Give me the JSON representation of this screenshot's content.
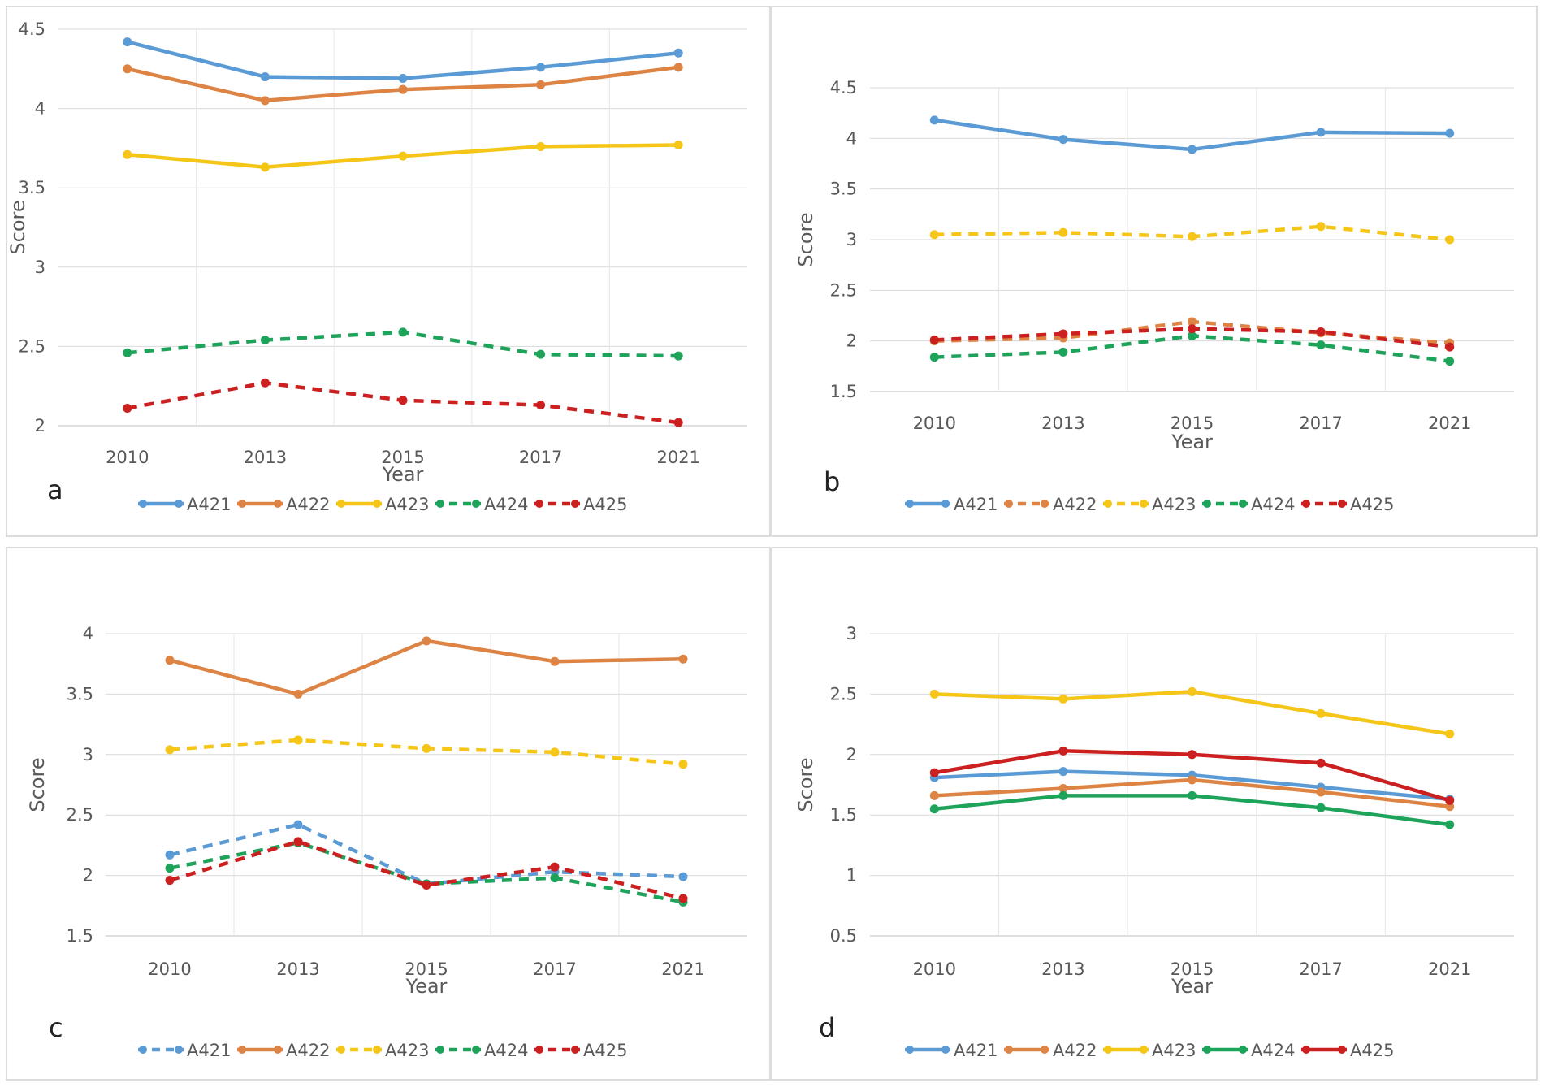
{
  "chart_data": [
    {
      "type": "line",
      "panel_label": "a",
      "categories": [
        "2010",
        "2013",
        "2015",
        "2017",
        "2021"
      ],
      "xlabel": "Year",
      "ylabel": "Score",
      "ylim": [
        2,
        4.5
      ],
      "yticks": [
        "2",
        "2.5",
        "3",
        "3.5",
        "4",
        "4.5"
      ],
      "grid": true,
      "legend_position": "bottom",
      "series": [
        {
          "name": "A421",
          "values": [
            4.42,
            4.2,
            4.19,
            4.26,
            4.35
          ],
          "color": "#5b9bd5",
          "dashed": false
        },
        {
          "name": "A422",
          "values": [
            4.25,
            4.05,
            4.12,
            4.15,
            4.26
          ],
          "color": "#dd8444",
          "dashed": false
        },
        {
          "name": "A423",
          "values": [
            3.71,
            3.63,
            3.7,
            3.76,
            3.77
          ],
          "color": "#f5c518",
          "dashed": false
        },
        {
          "name": "A424",
          "values": [
            2.46,
            2.54,
            2.59,
            2.45,
            2.44
          ],
          "color": "#1ea35a",
          "dashed": true
        },
        {
          "name": "A425",
          "values": [
            2.11,
            2.27,
            2.16,
            2.13,
            2.02
          ],
          "color": "#cc1f1f",
          "dashed": true
        }
      ]
    },
    {
      "type": "line",
      "panel_label": "b",
      "categories": [
        "2010",
        "2013",
        "2015",
        "2017",
        "2021"
      ],
      "xlabel": "Year",
      "ylabel": "Score",
      "ylim": [
        1.5,
        4.5
      ],
      "yticks": [
        "1.5",
        "2",
        "2.5",
        "3",
        "3.5",
        "4",
        "4.5"
      ],
      "grid": true,
      "legend_position": "bottom",
      "series": [
        {
          "name": "A421",
          "values": [
            4.18,
            3.99,
            3.89,
            4.06,
            4.05
          ],
          "color": "#5b9bd5",
          "dashed": false
        },
        {
          "name": "A422",
          "values": [
            2.0,
            2.03,
            2.19,
            2.08,
            1.98
          ],
          "color": "#dd8444",
          "dashed": true
        },
        {
          "name": "A423",
          "values": [
            3.05,
            3.07,
            3.03,
            3.13,
            3.0
          ],
          "color": "#f5c518",
          "dashed": true
        },
        {
          "name": "A424",
          "values": [
            1.84,
            1.89,
            2.05,
            1.96,
            1.8
          ],
          "color": "#1ea35a",
          "dashed": true
        },
        {
          "name": "A425",
          "values": [
            2.01,
            2.07,
            2.12,
            2.09,
            1.94
          ],
          "color": "#cc1f1f",
          "dashed": true
        }
      ]
    },
    {
      "type": "line",
      "panel_label": "c",
      "categories": [
        "2010",
        "2013",
        "2015",
        "2017",
        "2021"
      ],
      "xlabel": "Year",
      "ylabel": "Score",
      "ylim": [
        1.5,
        4
      ],
      "yticks": [
        "1.5",
        "2",
        "2.5",
        "3",
        "3.5",
        "4"
      ],
      "grid": true,
      "legend_position": "bottom",
      "series": [
        {
          "name": "A421",
          "values": [
            2.17,
            2.42,
            1.93,
            2.03,
            1.99
          ],
          "color": "#5b9bd5",
          "dashed": true
        },
        {
          "name": "A422",
          "values": [
            3.78,
            3.5,
            3.94,
            3.77,
            3.79
          ],
          "color": "#dd8444",
          "dashed": false
        },
        {
          "name": "A423",
          "values": [
            3.04,
            3.12,
            3.05,
            3.02,
            2.92
          ],
          "color": "#f5c518",
          "dashed": true
        },
        {
          "name": "A424",
          "values": [
            2.06,
            2.27,
            1.93,
            1.98,
            1.78
          ],
          "color": "#1ea35a",
          "dashed": true
        },
        {
          "name": "A425",
          "values": [
            1.96,
            2.28,
            1.92,
            2.07,
            1.81
          ],
          "color": "#cc1f1f",
          "dashed": true
        }
      ]
    },
    {
      "type": "line",
      "panel_label": "d",
      "categories": [
        "2010",
        "2013",
        "2015",
        "2017",
        "2021"
      ],
      "xlabel": "Year",
      "ylabel": "Score",
      "ylim": [
        0.5,
        3
      ],
      "yticks": [
        "0.5",
        "1",
        "1.5",
        "2",
        "2.5",
        "3"
      ],
      "grid": true,
      "legend_position": "bottom",
      "series": [
        {
          "name": "A421",
          "values": [
            1.81,
            1.86,
            1.83,
            1.73,
            1.63
          ],
          "color": "#5b9bd5",
          "dashed": false
        },
        {
          "name": "A422",
          "values": [
            1.66,
            1.72,
            1.79,
            1.69,
            1.57
          ],
          "color": "#dd8444",
          "dashed": false
        },
        {
          "name": "A423",
          "values": [
            2.5,
            2.46,
            2.52,
            2.34,
            2.17
          ],
          "color": "#f5c518",
          "dashed": false
        },
        {
          "name": "A424",
          "values": [
            1.55,
            1.66,
            1.66,
            1.56,
            1.42
          ],
          "color": "#1ea35a",
          "dashed": false
        },
        {
          "name": "A425",
          "values": [
            1.85,
            2.03,
            2.0,
            1.93,
            1.62
          ],
          "color": "#cc1f1f",
          "dashed": false
        }
      ]
    }
  ]
}
